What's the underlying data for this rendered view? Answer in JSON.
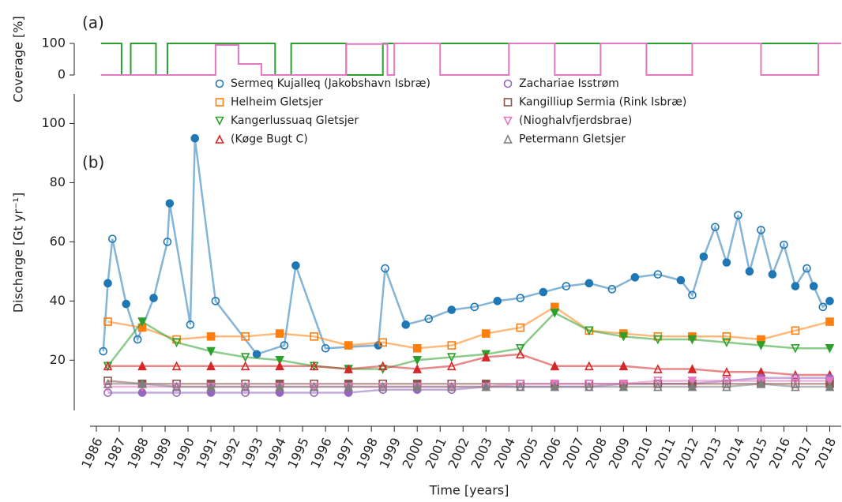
{
  "chart_data": [
    {
      "type": "step",
      "annotation": "(a)",
      "y_label": "Coverage [%]",
      "xlim": [
        1986,
        2018.5
      ],
      "ylim": [
        0,
        100
      ],
      "yticks": [
        0,
        100
      ],
      "series": [
        {
          "color": "#2ca02c",
          "x": [
            1986.2,
            1987.1,
            1987.5,
            1988.6,
            1989.1,
            1991.3,
            1993.8,
            1994.5,
            1996.9,
            1998.5,
            1999.4,
            2018
          ],
          "values": [
            100,
            0,
            100,
            0,
            100,
            100,
            0,
            100,
            0,
            100,
            100,
            100
          ]
        },
        {
          "color": "#e377c2",
          "x": [
            1986.2,
            1991.2,
            1992.2,
            1993.2,
            1994.2,
            1996.9,
            1998.7,
            1999.0,
            2001,
            2004,
            2006,
            2008,
            2010,
            2012,
            2015,
            2017.5,
            2018.5
          ],
          "values": [
            0,
            95,
            35,
            0,
            0,
            98,
            0,
            100,
            0,
            100,
            0,
            100,
            0,
            100,
            0,
            100,
            100
          ]
        }
      ]
    },
    {
      "type": "scatter",
      "annotation": "(b)",
      "y_label": "Discharge [Gt yr⁻¹]",
      "x_label": "Time [years]",
      "xlim": [
        1986,
        2018.5
      ],
      "ylim": [
        3,
        110
      ],
      "yticks": [
        20,
        40,
        60,
        80,
        100
      ],
      "xticks": [
        1986,
        1987,
        1988,
        1989,
        1990,
        1991,
        1992,
        1993,
        1994,
        1995,
        1996,
        1997,
        1998,
        1999,
        2000,
        2001,
        2002,
        2003,
        2004,
        2005,
        2006,
        2007,
        2008,
        2009,
        2010,
        2011,
        2012,
        2013,
        2014,
        2015,
        2016,
        2017,
        2018
      ],
      "series": [
        {
          "name": "Sermeq Kujalleq (Jakobshavn Isbræ)",
          "color": "#1f77b4",
          "marker": "circle",
          "x": [
            1986.3,
            1986.5,
            1986.7,
            1987.3,
            1987.8,
            1988.5,
            1989.1,
            1989.2,
            1990.1,
            1990.3,
            1991.2,
            1993,
            1994.2,
            1994.7,
            1996,
            1998.3,
            1998.6,
            1999.5,
            2000.5,
            2001.5,
            2002.5,
            2003.5,
            2004.5,
            2005.5,
            2006.5,
            2007.5,
            2008.5,
            2009.5,
            2010.5,
            2011.5,
            2012,
            2012.5,
            2013,
            2013.5,
            2014,
            2014.5,
            2015,
            2015.5,
            2016,
            2016.5,
            2017,
            2017.3,
            2017.7,
            2018
          ],
          "values": [
            23,
            46,
            61,
            39,
            27,
            41,
            60,
            73,
            32,
            95,
            40,
            22,
            25,
            52,
            24,
            25,
            51,
            32,
            34,
            37,
            38,
            40,
            41,
            43,
            45,
            46,
            44,
            48,
            49,
            47,
            42,
            55,
            65,
            53,
            69,
            50,
            64,
            49,
            59,
            45,
            51,
            45,
            38,
            40
          ]
        },
        {
          "name": "Helheim Gletsjer",
          "color": "#ff7f0e",
          "marker": "square",
          "x": [
            1986.5,
            1988,
            1989.5,
            1991,
            1992.5,
            1994,
            1995.5,
            1997,
            1998.5,
            2000,
            2001.5,
            2003,
            2004.5,
            2006,
            2007.5,
            2009,
            2010.5,
            2012,
            2013.5,
            2015,
            2016.5,
            2018
          ],
          "values": [
            33,
            31,
            27,
            28,
            28,
            29,
            28,
            25,
            26,
            24,
            25,
            29,
            31,
            38,
            30,
            29,
            28,
            28,
            28,
            27,
            30,
            33
          ]
        },
        {
          "name": "Kangerlussuaq Gletsjer",
          "color": "#2ca02c",
          "marker": "tri-down",
          "x": [
            1986.5,
            1988,
            1989.5,
            1991,
            1992.5,
            1994,
            1995.5,
            1997,
            1998.5,
            2000,
            2001.5,
            2003,
            2004.5,
            2006,
            2007.5,
            2009,
            2010.5,
            2012,
            2013.5,
            2015,
            2016.5,
            2018
          ],
          "values": [
            18,
            33,
            26,
            23,
            21,
            20,
            18,
            17,
            17,
            20,
            21,
            22,
            24,
            36,
            30,
            28,
            27,
            27,
            26,
            25,
            24,
            24
          ]
        },
        {
          "name": "(Køge Bugt C)",
          "color": "#d62728",
          "marker": "tri-up",
          "x": [
            1986.5,
            1988,
            1989.5,
            1991,
            1992.5,
            1994,
            1995.5,
            1997,
            1998.5,
            2000,
            2001.5,
            2003,
            2004.5,
            2006,
            2007.5,
            2009,
            2010.5,
            2012,
            2013.5,
            2015,
            2016.5,
            2018
          ],
          "values": [
            18,
            18,
            18,
            18,
            18,
            18,
            18,
            17,
            18,
            17,
            18,
            21,
            22,
            18,
            18,
            18,
            17,
            17,
            16,
            16,
            15,
            15
          ]
        },
        {
          "name": "Zachariae Isstrøm",
          "color": "#9467bd",
          "marker": "circle",
          "x": [
            1986.5,
            1988,
            1989.5,
            1991,
            1992.5,
            1994,
            1995.5,
            1997,
            1998.5,
            2000,
            2001.5,
            2003,
            2004.5,
            2006,
            2007.5,
            2009,
            2010.5,
            2012,
            2013.5,
            2015,
            2016.5,
            2018
          ],
          "values": [
            9,
            9,
            9,
            9,
            9,
            9,
            9,
            9,
            10,
            10,
            10,
            11,
            11,
            11,
            11,
            12,
            12,
            12,
            13,
            14,
            14,
            14
          ]
        },
        {
          "name": "Kangilliup Sermia (Rink Isbræ)",
          "color": "#8c564b",
          "marker": "square",
          "x": [
            1986.5,
            1988,
            1989.5,
            1991,
            1992.5,
            1994,
            1995.5,
            1997,
            1998.5,
            2000,
            2001.5,
            2003,
            2004.5,
            2006,
            2007.5,
            2009,
            2010.5,
            2012,
            2013.5,
            2015,
            2016.5,
            2018
          ],
          "values": [
            13,
            12,
            12,
            12,
            12,
            12,
            12,
            12,
            12,
            12,
            12,
            12,
            12,
            12,
            12,
            12,
            12,
            12,
            12,
            12,
            12,
            12
          ]
        },
        {
          "name": "(Nioghalvfjerdsbrae)",
          "color": "#e377c2",
          "marker": "tri-down",
          "x": [
            1986.5,
            1988,
            1989.5,
            1991,
            1992.5,
            1994,
            1995.5,
            1997,
            1998.5,
            2000,
            2001.5,
            2003,
            2004.5,
            2006,
            2007.5,
            2009,
            2010.5,
            2012,
            2013.5,
            2015,
            2016.5,
            2018
          ],
          "values": [
            11,
            11,
            11,
            11,
            11,
            11,
            11,
            11,
            11,
            11,
            11,
            11,
            12,
            12,
            12,
            12,
            13,
            13,
            13,
            13,
            13,
            13
          ]
        },
        {
          "name": "Petermann Gletsjer",
          "color": "#7f7f7f",
          "marker": "tri-up",
          "x": [
            1986.5,
            1988,
            1989.5,
            1991,
            1992.5,
            1994,
            1995.5,
            1997,
            1998.5,
            2000,
            2001.5,
            2003,
            2004.5,
            2006,
            2007.5,
            2009,
            2010.5,
            2012,
            2013.5,
            2015,
            2016.5,
            2018
          ],
          "values": [
            12,
            12,
            11,
            11,
            11,
            11,
            11,
            11,
            11,
            11,
            11,
            11,
            11,
            11,
            11,
            11,
            11,
            11,
            11,
            12,
            11,
            11
          ]
        }
      ]
    }
  ]
}
